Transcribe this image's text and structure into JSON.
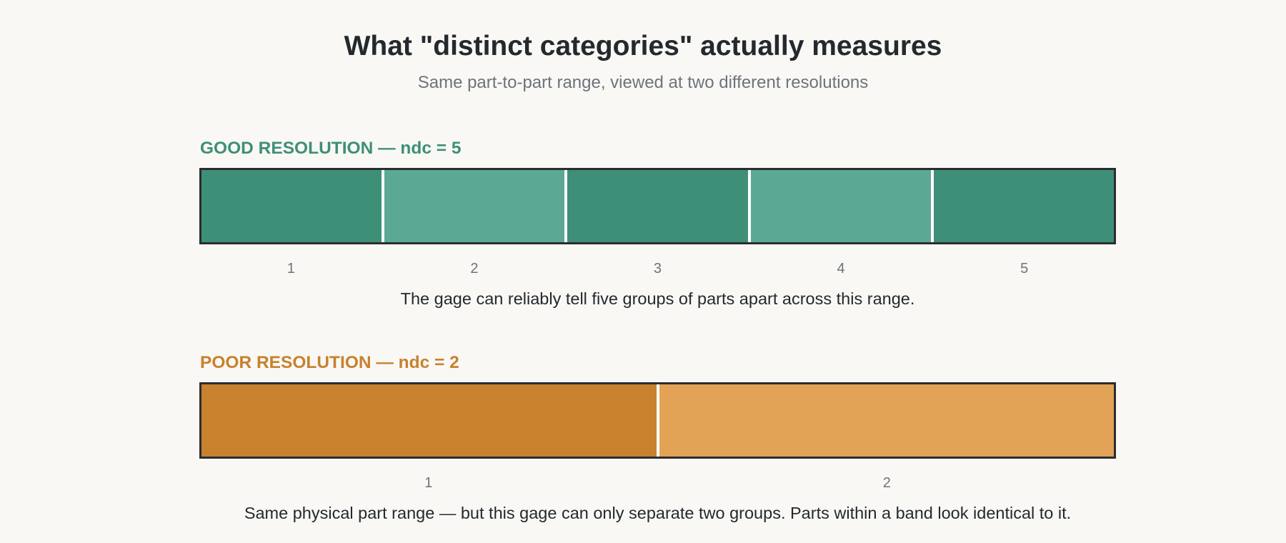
{
  "title": "What \"distinct categories\" actually measures",
  "subtitle": "Same part-to-part range, viewed at two different resolutions",
  "colors": {
    "background": "#f9f8f5",
    "good_label": "#3e8f78",
    "poor_label": "#c8812d",
    "bar_border": "#2b2d2f",
    "divider": "#ffffff"
  },
  "good": {
    "label": "GOOD RESOLUTION — ndc = 5",
    "ndc": 5,
    "bands": [
      {
        "number": "1",
        "color": "#3e8f78"
      },
      {
        "number": "2",
        "color": "#5ba895"
      },
      {
        "number": "3",
        "color": "#3e8f78"
      },
      {
        "number": "4",
        "color": "#5ba895"
      },
      {
        "number": "5",
        "color": "#3e8f78"
      }
    ],
    "caption": "The gage can reliably tell five groups of parts apart across this range."
  },
  "poor": {
    "label": "POOR RESOLUTION — ndc = 2",
    "ndc": 2,
    "bands": [
      {
        "number": "1",
        "color": "#c8812d"
      },
      {
        "number": "2",
        "color": "#e2a357"
      }
    ],
    "caption": "Same physical part range — but this gage can only separate two groups. Parts within a band look identical to it."
  }
}
